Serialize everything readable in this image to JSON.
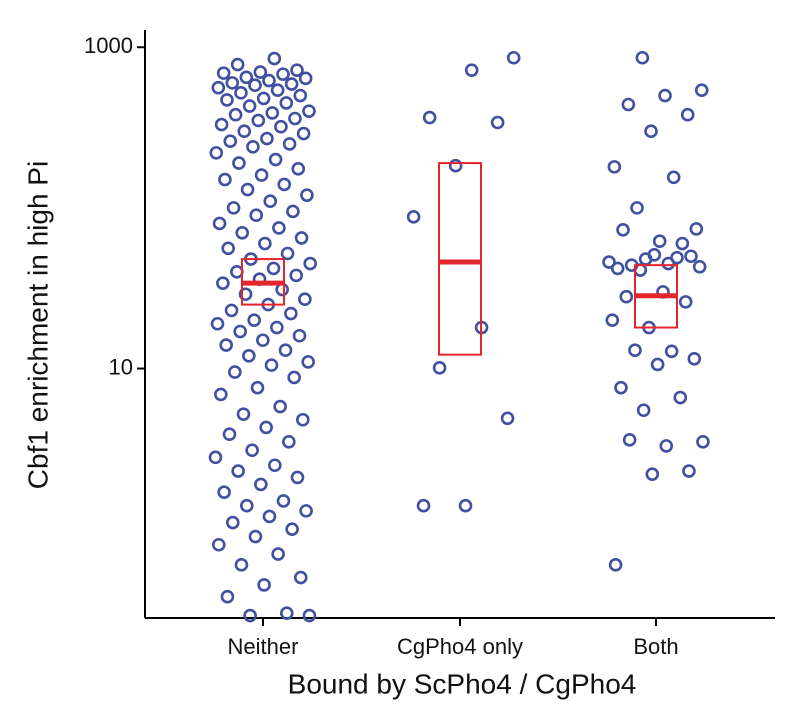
{
  "chart_data": {
    "type": "strip",
    "x_label": "Bound by ScPho4 / CgPho4",
    "y_label": "Cbf1 enrichment in high Pi",
    "categories": [
      "Neither",
      "CgPho4 only",
      "Both"
    ],
    "log_y": true,
    "ylim": [
      0.28,
      1280
    ],
    "yticks": [
      10,
      1000
    ],
    "point_color": "#4150a0",
    "box_color": "#e3262c",
    "points": [
      [
        850,
        780,
        720,
        700,
        690,
        680,
        650,
        640,
        620,
        600,
        590,
        580,
        560,
        540,
        520,
        500,
        480,
        470,
        450,
        430,
        400,
        390,
        380,
        360,
        350,
        330,
        320,
        300,
        290,
        270,
        260,
        250,
        240,
        220,
        200,
        190,
        175,
        160,
        150,
        140,
        130,
        120,
        110,
        100,
        95,
        90,
        80,
        75,
        70,
        65,
        60,
        56,
        52,
        48,
        45,
        42,
        40,
        38,
        36,
        34,
        31,
        29,
        27,
        25,
        23,
        22,
        20,
        19,
        18,
        17,
        16,
        15,
        14,
        13,
        12,
        11,
        10.5,
        9.5,
        8.8,
        7.6,
        6.9,
        5.8,
        5.2,
        4.8,
        4.3,
        3.9,
        3.5,
        3.1,
        2.8,
        2.5,
        2.3,
        2.1,
        1.9,
        1.7,
        1.5,
        1.4,
        1.3,
        1.2,
        1.1,
        1.0,
        0.9,
        0.8,
        0.7,
        0.6,
        0.5,
        0.45,
        0.38,
        0.3,
        0.29,
        0.29
      ],
      [
        860,
        720,
        365,
        340,
        183,
        88,
        18,
        10.1,
        4.9,
        1.4,
        1.4
      ],
      [
        860,
        540,
        500,
        440,
        380,
        300,
        180,
        155,
        100,
        74,
        62,
        73,
        60,
        48,
        46,
        45,
        44,
        50,
        51,
        42,
        49,
        41,
        43,
        30,
        28,
        26,
        18,
        20,
        12.8,
        13,
        11.5,
        10.6,
        7.6,
        6.6,
        5.5,
        3.5,
        3.3,
        3.6,
        2.3,
        2.2,
        0.6
      ]
    ],
    "boxes": [
      {
        "median": 34,
        "q1": 25,
        "q3": 48
      },
      {
        "median": 46,
        "q1": 12.2,
        "q3": 190
      },
      {
        "median": 28.4,
        "q1": 18,
        "q3": 44
      }
    ]
  }
}
